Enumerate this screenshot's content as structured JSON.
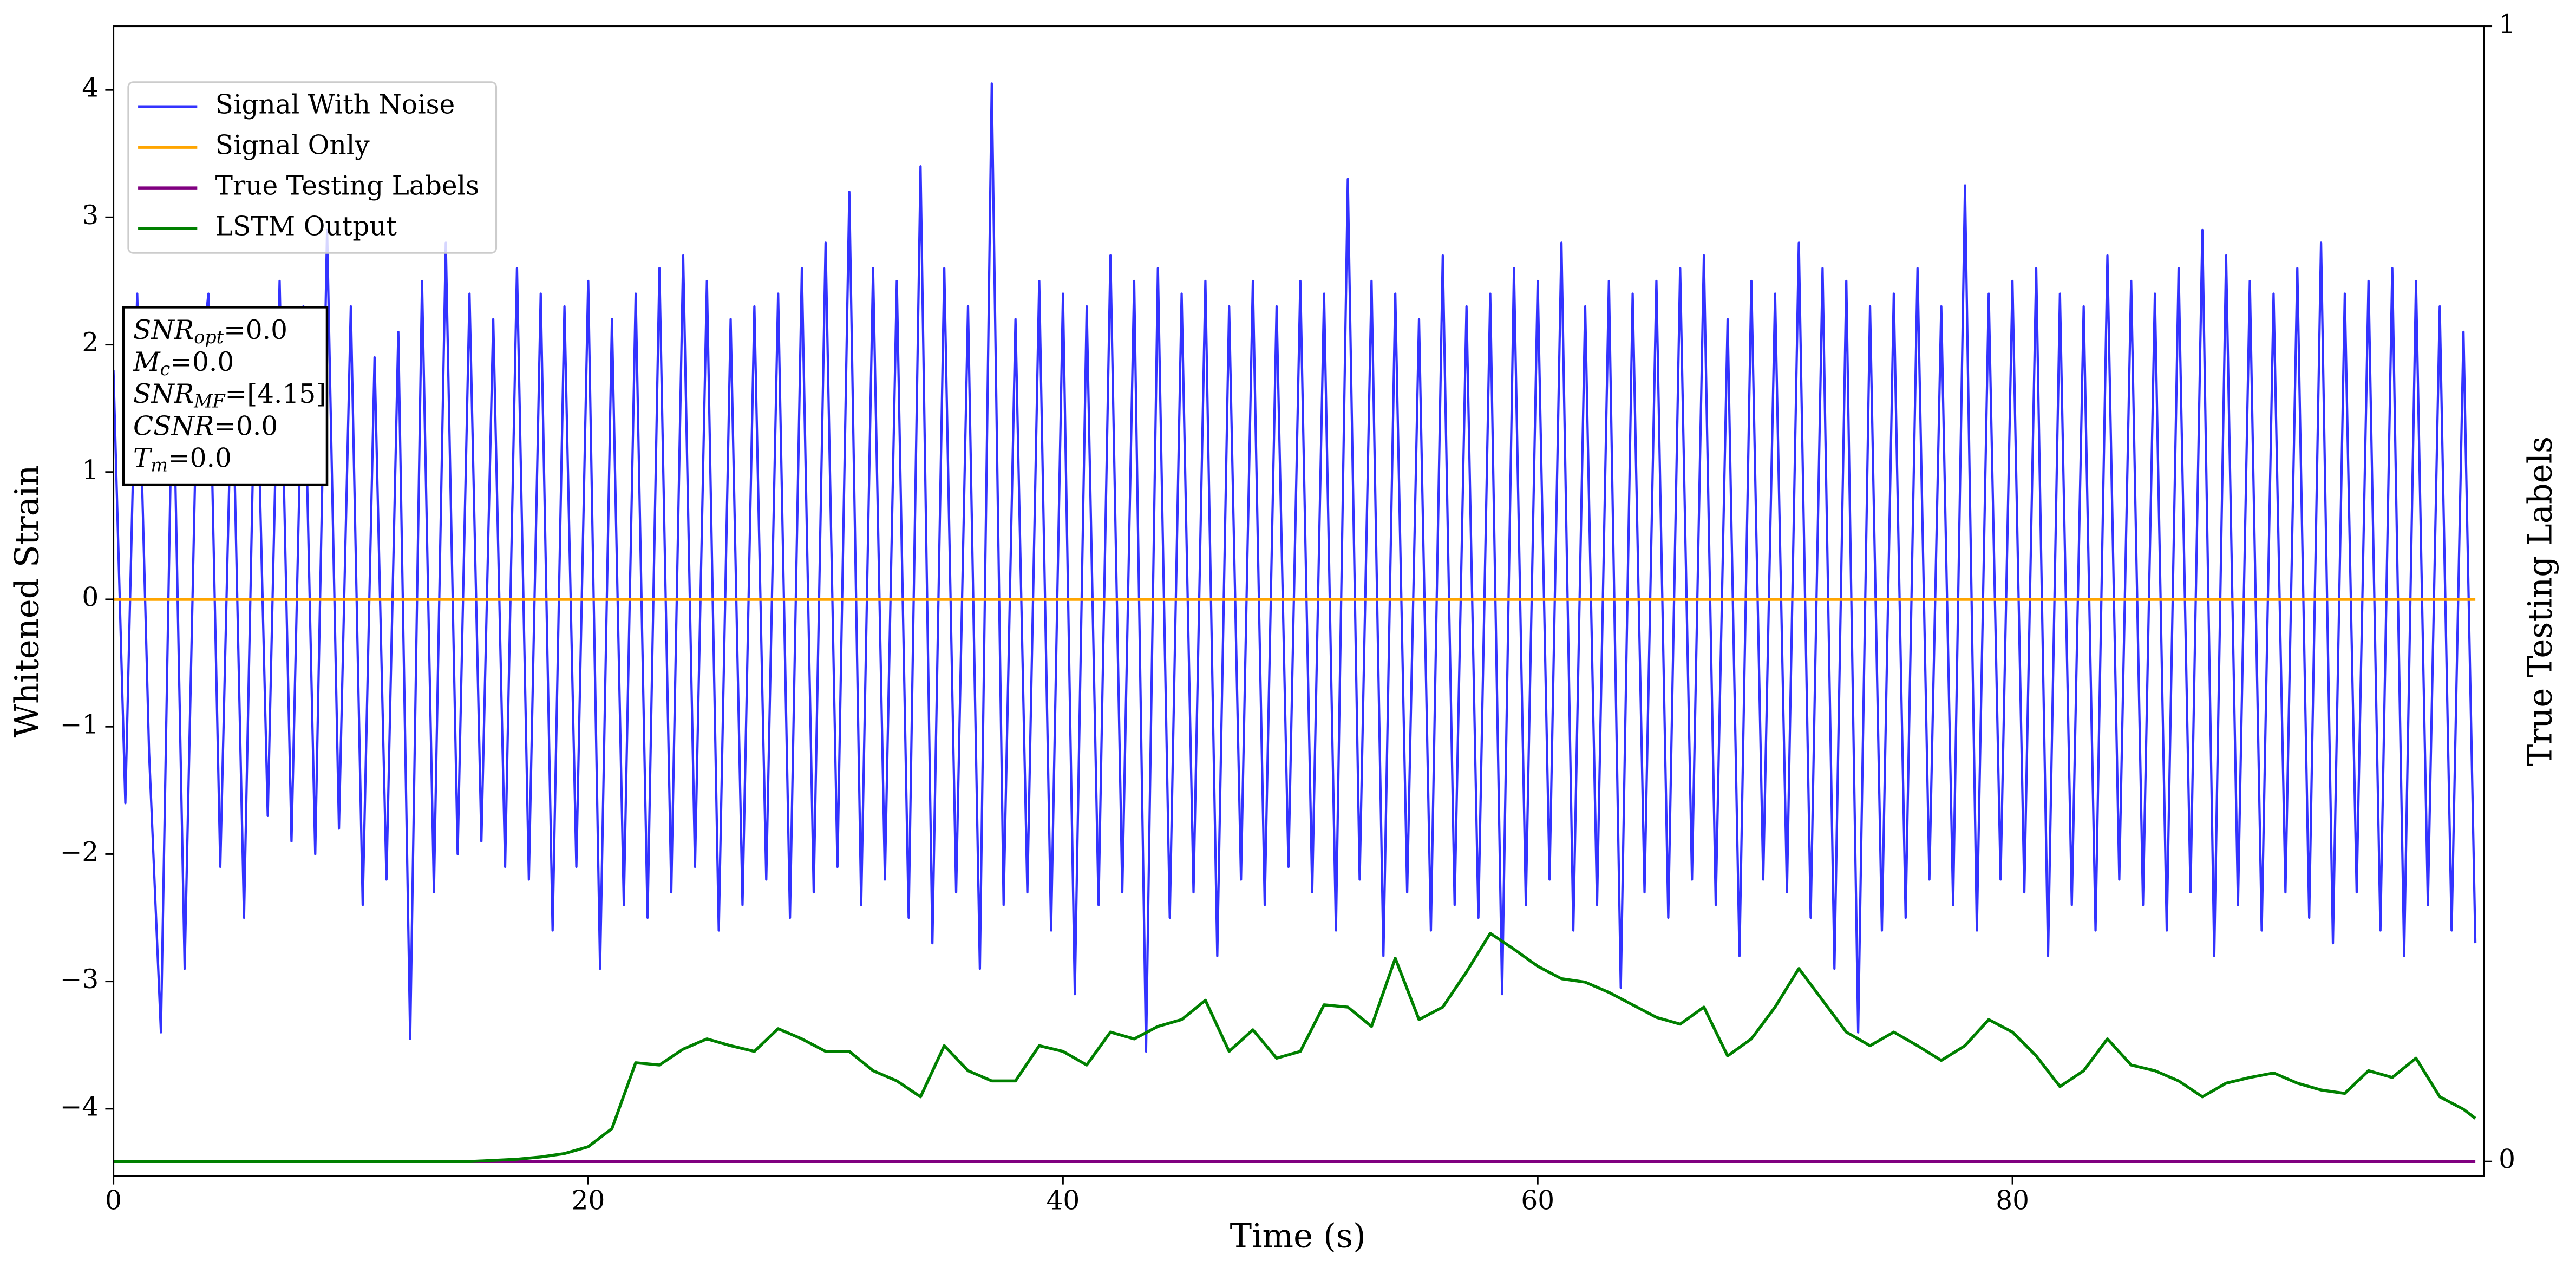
{
  "chart_data": {
    "type": "line",
    "xlabel": "Time (s)",
    "ylabel": "Whitened Strain",
    "y2label": "True Testing Labels",
    "xlim": [
      0,
      99.86
    ],
    "ylim": [
      -4.53,
      4.5
    ],
    "y2lim": [
      -0.013,
      1
    ],
    "xticks": [
      0,
      20,
      40,
      60,
      80
    ],
    "yticks": [
      -4,
      -3,
      -2,
      -1,
      0,
      1,
      2,
      3,
      4
    ],
    "y2ticks": [
      0,
      1
    ],
    "legend": "upper left",
    "annotation": [
      {
        "symbol": "SNR",
        "subscript": "opt",
        "value": "=0.0"
      },
      {
        "symbol": "M",
        "subscript": "c",
        "value": "=0.0"
      },
      {
        "symbol": "SNR",
        "subscript": "MF",
        "value": "=[4.15]"
      },
      {
        "symbol": "CSNR",
        "value": "=0.0"
      },
      {
        "symbol": "T",
        "subscript": "m",
        "value": "=0.0"
      }
    ],
    "series": [
      {
        "name": "Signal With Noise",
        "color": "#3333ff",
        "axis": "y",
        "x": [
          0,
          0.5,
          1,
          1.5,
          2,
          2.5,
          3,
          3.5,
          4,
          4.5,
          5,
          5.5,
          6,
          6.5,
          7,
          7.5,
          8,
          8.5,
          9,
          9.5,
          10,
          10.5,
          11,
          11.5,
          12,
          12.5,
          13,
          13.5,
          14,
          14.5,
          15,
          15.5,
          16,
          16.5,
          17,
          17.5,
          18,
          18.5,
          19,
          19.5,
          20,
          20.5,
          21,
          21.5,
          22,
          22.5,
          23,
          23.5,
          24,
          24.5,
          25,
          25.5,
          26,
          26.5,
          27,
          27.5,
          28,
          28.5,
          29,
          29.5,
          30,
          30.5,
          31,
          31.5,
          32,
          32.5,
          33,
          33.5,
          34,
          34.5,
          35,
          35.5,
          36,
          36.5,
          37,
          37.5,
          38,
          38.5,
          39,
          39.5,
          40,
          40.5,
          41,
          41.5,
          42,
          42.5,
          43,
          43.5,
          44,
          44.5,
          45,
          45.5,
          46,
          46.5,
          47,
          47.5,
          48,
          48.5,
          49,
          49.5,
          50,
          50.5,
          51,
          51.5,
          52,
          52.5,
          53,
          53.5,
          54,
          54.5,
          55,
          55.5,
          56,
          56.5,
          57,
          57.5,
          58,
          58.5,
          59,
          59.5,
          60,
          60.5,
          61,
          61.5,
          62,
          62.5,
          63,
          63.5,
          64,
          64.5,
          65,
          65.5,
          66,
          66.5,
          67,
          67.5,
          68,
          68.5,
          69,
          69.5,
          70,
          70.5,
          71,
          71.5,
          72,
          72.5,
          73,
          73.5,
          74,
          74.5,
          75,
          75.5,
          76,
          76.5,
          77,
          77.5,
          78,
          78.5,
          79,
          79.5,
          80,
          80.5,
          81,
          81.5,
          82,
          82.5,
          83,
          83.5,
          84,
          84.5,
          85,
          85.5,
          86,
          86.5,
          87,
          87.5,
          88,
          88.5,
          89,
          89.5,
          90,
          90.5,
          91,
          91.5,
          92,
          92.5,
          93,
          93.5,
          94,
          94.5,
          95,
          95.5,
          96,
          96.5,
          97,
          97.5,
          98,
          98.5,
          99,
          99.5
        ],
        "values": [
          1.8,
          -1.6,
          2.4,
          -1.2,
          -3.4,
          2.0,
          -2.9,
          1.5,
          2.4,
          -2.1,
          1.9,
          -2.5,
          2.2,
          -1.7,
          2.5,
          -1.9,
          2.3,
          -2.0,
          2.9,
          -1.8,
          2.3,
          -2.4,
          1.9,
          -2.2,
          2.1,
          -3.45,
          2.5,
          -2.3,
          2.8,
          -2.0,
          2.4,
          -1.9,
          2.2,
          -2.1,
          2.6,
          -2.2,
          2.4,
          -2.6,
          2.3,
          -2.1,
          2.5,
          -2.9,
          2.2,
          -2.4,
          2.4,
          -2.5,
          2.6,
          -2.3,
          2.7,
          -2.1,
          2.5,
          -2.6,
          2.2,
          -2.4,
          2.3,
          -2.2,
          2.4,
          -2.5,
          2.6,
          -2.3,
          2.8,
          -2.1,
          3.2,
          -2.4,
          2.6,
          -2.2,
          2.5,
          -2.5,
          3.4,
          -2.7,
          2.6,
          -2.3,
          2.3,
          -2.9,
          4.05,
          -2.4,
          2.2,
          -2.3,
          2.5,
          -2.6,
          2.4,
          -3.1,
          2.3,
          -2.4,
          2.7,
          -2.3,
          2.5,
          -3.55,
          2.6,
          -2.5,
          2.4,
          -2.3,
          2.5,
          -2.8,
          2.3,
          -2.2,
          2.5,
          -2.4,
          2.3,
          -2.1,
          2.5,
          -2.3,
          2.4,
          -2.6,
          3.3,
          -2.2,
          2.5,
          -2.8,
          2.4,
          -2.3,
          2.2,
          -2.6,
          2.7,
          -2.4,
          2.3,
          -2.5,
          2.4,
          -3.1,
          2.6,
          -2.4,
          2.5,
          -2.2,
          2.8,
          -2.6,
          2.3,
          -2.4,
          2.5,
          -3.05,
          2.4,
          -2.3,
          2.5,
          -2.5,
          2.6,
          -2.2,
          2.7,
          -2.4,
          2.2,
          -2.8,
          2.5,
          -2.2,
          2.4,
          -2.3,
          2.8,
          -2.5,
          2.6,
          -2.9,
          2.5,
          -3.4,
          2.3,
          -2.6,
          2.4,
          -2.5,
          2.6,
          -2.2,
          2.3,
          -2.4,
          3.25,
          -2.6,
          2.4,
          -2.2,
          2.5,
          -2.3,
          2.6,
          -2.8,
          2.4,
          -2.4,
          2.3,
          -2.6,
          2.7,
          -2.2,
          2.5,
          -2.4,
          2.4,
          -2.6,
          2.6,
          -2.3,
          2.9,
          -2.8,
          2.7,
          -2.4,
          2.5,
          -2.6,
          2.4,
          -2.3,
          2.6,
          -2.5,
          2.8,
          -2.7,
          2.4,
          -2.3,
          2.5,
          -2.6,
          2.6,
          -2.8,
          2.5,
          -2.4,
          2.3,
          -2.6,
          2.1,
          -2.7
        ]
      },
      {
        "name": "Signal Only",
        "color": "#ffa500",
        "axis": "y",
        "x": [
          0,
          99.5
        ],
        "values": [
          0,
          0
        ]
      },
      {
        "name": "True Testing Labels",
        "color": "#800080",
        "axis": "y2",
        "x": [
          0,
          99.5
        ],
        "values": [
          0,
          0
        ]
      },
      {
        "name": "LSTM Output",
        "color": "#008000",
        "axis": "y2",
        "x": [
          0,
          15,
          17,
          18,
          19,
          20,
          21,
          22,
          23,
          24,
          25,
          26,
          27,
          28,
          29,
          30,
          31,
          32,
          33,
          34,
          35,
          36,
          37,
          38,
          39,
          40,
          41,
          42,
          43,
          44,
          45,
          46,
          47,
          48,
          49,
          50,
          51,
          52,
          53,
          54,
          55,
          56,
          57,
          58,
          59,
          60,
          61,
          62,
          63,
          64,
          65,
          66,
          67,
          68,
          69,
          70,
          71,
          72,
          73,
          74,
          75,
          76,
          77,
          78,
          79,
          80,
          81,
          82,
          83,
          84,
          85,
          86,
          87,
          88,
          89,
          90,
          91,
          92,
          93,
          94,
          95,
          96,
          97,
          98,
          99,
          99.5
        ],
        "values": [
          0,
          0,
          0.002,
          0.004,
          0.007,
          0.013,
          0.029,
          0.087,
          0.085,
          0.099,
          0.108,
          0.102,
          0.097,
          0.117,
          0.108,
          0.097,
          0.097,
          0.08,
          0.071,
          0.057,
          0.102,
          0.08,
          0.071,
          0.071,
          0.102,
          0.097,
          0.085,
          0.114,
          0.108,
          0.119,
          0.125,
          0.142,
          0.097,
          0.116,
          0.091,
          0.097,
          0.138,
          0.136,
          0.119,
          0.179,
          0.125,
          0.136,
          0.167,
          0.201,
          0.187,
          0.172,
          0.161,
          0.158,
          0.149,
          0.138,
          0.127,
          0.121,
          0.136,
          0.093,
          0.108,
          0.136,
          0.17,
          0.142,
          0.114,
          0.102,
          0.114,
          0.102,
          0.089,
          0.102,
          0.125,
          0.114,
          0.093,
          0.066,
          0.08,
          0.108,
          0.085,
          0.08,
          0.071,
          0.057,
          0.069,
          0.074,
          0.078,
          0.069,
          0.063,
          0.06,
          0.08,
          0.074,
          0.091,
          0.057,
          0.046,
          0.038
        ]
      }
    ]
  }
}
